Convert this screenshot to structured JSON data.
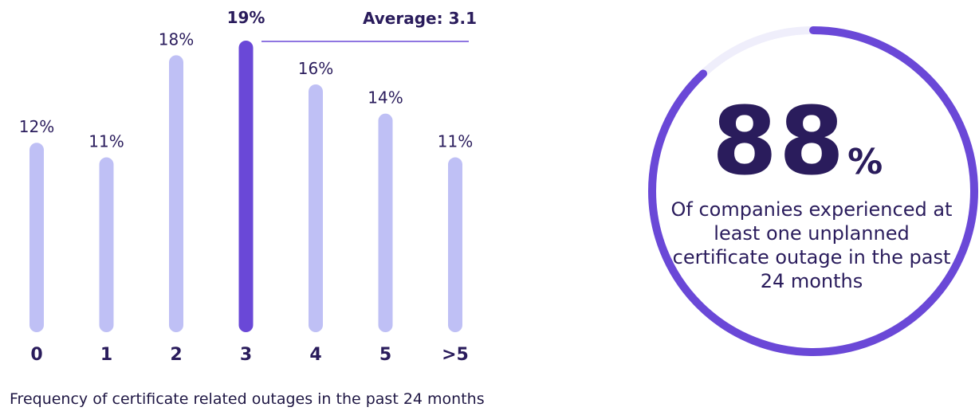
{
  "chart_data": [
    {
      "type": "bar",
      "categories": [
        "0",
        "1",
        "2",
        "3",
        "4",
        "5",
        ">5"
      ],
      "values": [
        12,
        11,
        18,
        19,
        16,
        14,
        11
      ],
      "value_labels": [
        "12%",
        "11%",
        "18%",
        "19%",
        "16%",
        "14%",
        "11%"
      ],
      "highlight_index": 3,
      "xlabel": "Frequency of certificate related outages in the past 24 months",
      "ylabel": "",
      "ylim": [
        0,
        20
      ],
      "annotation": "Average: 3.1",
      "colors": {
        "bar": "#bfc0f5",
        "highlight": "#6a48d7",
        "text": "#2a1c5c",
        "avg_line": "#6a48d7"
      }
    },
    {
      "type": "pie",
      "value": 88,
      "value_text": "88",
      "unit": "%",
      "caption": "Of companies experienced at least one unplanned certificate outage in the past 24 months",
      "colors": {
        "ring": "#6a48d7",
        "track": "#efeefb",
        "text": "#2a1c5c"
      }
    }
  ]
}
